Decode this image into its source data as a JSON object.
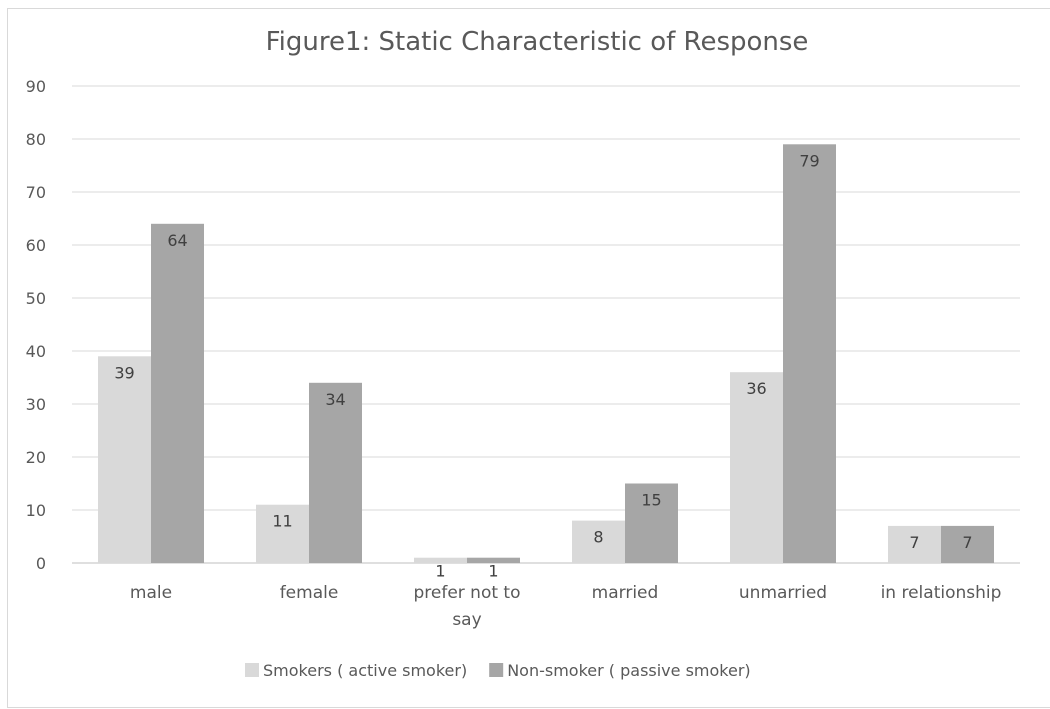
{
  "chart_data": {
    "type": "bar",
    "title": "Figure1: Static Characteristic of Response",
    "xlabel": "",
    "ylabel": "",
    "ylim": [
      0,
      90
    ],
    "yticks": [
      0,
      10,
      20,
      30,
      40,
      50,
      60,
      70,
      80,
      90
    ],
    "grid": true,
    "legend_position": "bottom",
    "categories": [
      "male",
      "female",
      "prefer not to say",
      "married",
      "unmarried",
      "in relationship"
    ],
    "category_lines": [
      [
        "male"
      ],
      [
        "female"
      ],
      [
        "prefer not to",
        "say"
      ],
      [
        "married"
      ],
      [
        "unmarried"
      ],
      [
        "in relationship"
      ]
    ],
    "series": [
      {
        "name": "Smokers ( active smoker)",
        "color": "#d9d9d9",
        "values": [
          39,
          11,
          1,
          8,
          36,
          7
        ]
      },
      {
        "name": "Non-smoker ( passive smoker)",
        "color": "#a6a6a6",
        "values": [
          64,
          34,
          1,
          15,
          79,
          7
        ]
      }
    ]
  }
}
